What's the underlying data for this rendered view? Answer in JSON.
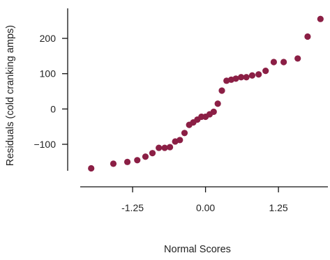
{
  "chart_data": {
    "type": "scatter",
    "title": "",
    "xlabel": "Normal Scores",
    "ylabel": "Residuals (cold cranking amps)",
    "xlim": [
      -2.1,
      2.05
    ],
    "ylim": [
      -175,
      285
    ],
    "xticks": [
      -1.25,
      0.0,
      1.25
    ],
    "xtick_labels": [
      "-1.25",
      "0.00",
      "1.25"
    ],
    "yticks": [
      -100,
      0,
      100,
      200
    ],
    "ytick_labels": [
      "−100",
      "0",
      "100",
      "200"
    ],
    "grid": false,
    "legend": "none",
    "marker_color": "#8b1f45",
    "points": [
      {
        "x": -1.96,
        "y": -168
      },
      {
        "x": -1.58,
        "y": -155
      },
      {
        "x": -1.34,
        "y": -150
      },
      {
        "x": -1.17,
        "y": -145
      },
      {
        "x": -1.03,
        "y": -135
      },
      {
        "x": -0.91,
        "y": -125
      },
      {
        "x": -0.8,
        "y": -110
      },
      {
        "x": -0.7,
        "y": -110
      },
      {
        "x": -0.61,
        "y": -108
      },
      {
        "x": -0.52,
        "y": -92
      },
      {
        "x": -0.44,
        "y": -88
      },
      {
        "x": -0.36,
        "y": -68
      },
      {
        "x": -0.28,
        "y": -45
      },
      {
        "x": -0.21,
        "y": -38
      },
      {
        "x": -0.14,
        "y": -30
      },
      {
        "x": -0.07,
        "y": -22
      },
      {
        "x": 0.0,
        "y": -22
      },
      {
        "x": 0.07,
        "y": -15
      },
      {
        "x": 0.14,
        "y": -8
      },
      {
        "x": 0.21,
        "y": 15
      },
      {
        "x": 0.28,
        "y": 52
      },
      {
        "x": 0.36,
        "y": 80
      },
      {
        "x": 0.44,
        "y": 83
      },
      {
        "x": 0.52,
        "y": 86
      },
      {
        "x": 0.61,
        "y": 90
      },
      {
        "x": 0.7,
        "y": 90
      },
      {
        "x": 0.8,
        "y": 95
      },
      {
        "x": 0.91,
        "y": 98
      },
      {
        "x": 1.03,
        "y": 108
      },
      {
        "x": 1.17,
        "y": 133
      },
      {
        "x": 1.34,
        "y": 133
      },
      {
        "x": 1.58,
        "y": 143
      },
      {
        "x": 1.75,
        "y": 205
      },
      {
        "x": 1.97,
        "y": 255
      }
    ]
  }
}
